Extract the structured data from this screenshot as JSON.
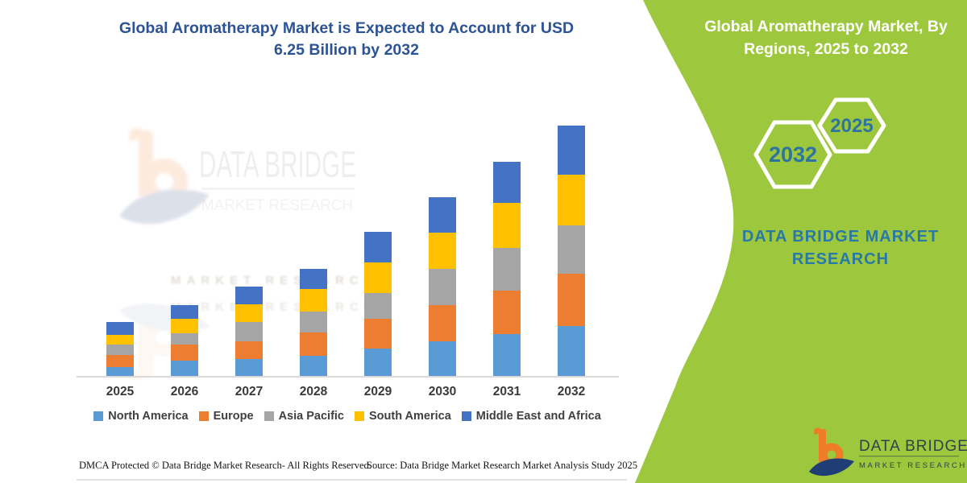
{
  "left_panel": {
    "title_line1": "Global Aromatherapy Market is Expected to Account for USD",
    "title_line2": "6.25 Billion by 2032",
    "footer_left": "DMCA Protected © Data Bridge Market Research- All Rights Reserved.",
    "footer_right": "Source: Data Bridge Market Research Market Analysis Study 2025"
  },
  "right_panel": {
    "title": "Global Aromatherapy Market, By Regions, 2025 to 2032",
    "background_color": "#9DC73C",
    "hexagon_back_year": "2032",
    "hexagon_front_year": "2025",
    "year_text_color": "#2E74A0",
    "brand_line1": "DATA BRIDGE MARKET",
    "brand_line2": "RESEARCH",
    "brand_text_color": "#2878A8"
  },
  "logo": {
    "name_line": "DATA BRIDGE",
    "sub_line": "MARKET RESEARCH",
    "orange": "#F07B28",
    "navy": "#1F3E75",
    "text_color": "#333F4B"
  },
  "watermark": {
    "line1": "DATA BRIDGE",
    "line2": "MARKET RESEARCH"
  },
  "chart_data": {
    "type": "bar",
    "stacked": true,
    "title": "Global Aromatherapy Market is Expected to Account for USD 6.25 Billion by 2032",
    "unit": "USD Billion",
    "categories": [
      "2025",
      "2026",
      "2027",
      "2028",
      "2029",
      "2030",
      "2031",
      "2032"
    ],
    "series": [
      {
        "name": "North America",
        "color": "#5B9BD5",
        "values": [
          0.25,
          0.4,
          0.45,
          0.52,
          0.71,
          0.89,
          1.07,
          1.26
        ]
      },
      {
        "name": "Europe",
        "color": "#ED7D31",
        "values": [
          0.3,
          0.4,
          0.44,
          0.58,
          0.73,
          0.9,
          1.07,
          1.3
        ]
      },
      {
        "name": "Asia Pacific",
        "color": "#A5A5A5",
        "values": [
          0.26,
          0.29,
          0.48,
          0.53,
          0.65,
          0.9,
          1.07,
          1.2
        ]
      },
      {
        "name": "South America",
        "color": "#FFC000",
        "values": [
          0.23,
          0.36,
          0.43,
          0.55,
          0.75,
          0.9,
          1.11,
          1.27
        ]
      },
      {
        "name": "Middle East and Africa",
        "color": "#4472C4",
        "values": [
          0.32,
          0.34,
          0.45,
          0.5,
          0.76,
          0.88,
          1.03,
          1.22
        ]
      }
    ],
    "totals": [
      1.36,
      1.79,
      2.25,
      2.68,
      3.6,
      4.47,
      5.35,
      6.25
    ],
    "ylim": [
      0,
      6.5
    ],
    "grid": false,
    "legend_position": "bottom",
    "axis_line_color": "#D9D9D9"
  }
}
